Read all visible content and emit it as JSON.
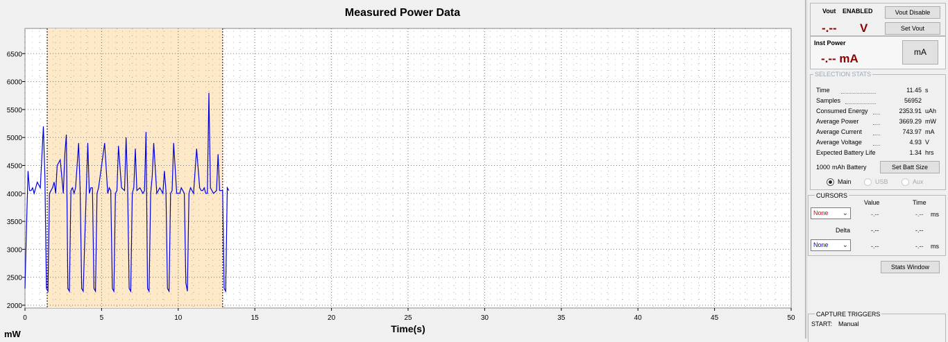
{
  "chart": {
    "title": "Measured Power Data",
    "xlabel": "Time(s)",
    "ylabel": "mW"
  },
  "chart_data": {
    "type": "line",
    "title": "Measured Power Data",
    "xlabel": "Time(s)",
    "ylabel": "mW",
    "xlim": [
      0,
      50
    ],
    "ylim": [
      1950,
      6950
    ],
    "x_ticks": [
      "0",
      "5",
      "10",
      "15",
      "20",
      "25",
      "30",
      "35",
      "40",
      "45",
      "50"
    ],
    "y_ticks": [
      "2000",
      "2500",
      "3000",
      "3500",
      "4000",
      "4500",
      "5000",
      "5500",
      "6000",
      "6500"
    ],
    "selection": [
      1.45,
      12.9
    ],
    "series": [
      {
        "color": "#0000dd",
        "x": [
          0.0,
          0.1,
          0.2,
          0.3,
          0.4,
          0.5,
          0.6,
          0.8,
          1.0,
          1.2,
          1.3,
          1.4,
          1.5,
          1.6,
          1.7,
          1.8,
          1.9,
          2.0,
          2.1,
          2.3,
          2.5,
          2.6,
          2.7,
          2.8,
          2.9,
          3.0,
          3.1,
          3.2,
          3.3,
          3.4,
          3.5,
          3.6,
          3.7,
          3.8,
          4.0,
          4.1,
          4.2,
          4.3,
          4.4,
          4.5,
          4.6,
          4.7,
          4.8,
          5.0,
          5.2,
          5.4,
          5.5,
          5.6,
          5.7,
          5.8,
          5.9,
          6.0,
          6.1,
          6.3,
          6.5,
          6.6,
          6.7,
          6.8,
          6.9,
          7.0,
          7.1,
          7.2,
          7.3,
          7.5,
          7.7,
          7.8,
          7.9,
          8.0,
          8.1,
          8.2,
          8.3,
          8.4,
          8.6,
          8.8,
          9.0,
          9.1,
          9.2,
          9.3,
          9.4,
          9.5,
          9.6,
          9.7,
          9.9,
          10.1,
          10.2,
          10.3,
          10.4,
          10.5,
          10.6,
          10.7,
          10.8,
          11.0,
          11.2,
          11.4,
          11.5,
          11.6,
          11.7,
          11.8,
          11.9,
          12.0,
          12.1,
          12.3,
          12.5,
          12.6,
          12.7,
          12.8,
          12.9,
          13.0,
          13.1,
          13.2
        ],
        "y": [
          2300,
          3400,
          4400,
          4050,
          4050,
          4100,
          4000,
          4200,
          4100,
          5200,
          4300,
          2300,
          2250,
          4000,
          4050,
          4100,
          4200,
          4000,
          4500,
          4600,
          4000,
          4700,
          5050,
          2300,
          2250,
          4050,
          4100,
          4000,
          4100,
          4500,
          4900,
          4050,
          2300,
          2250,
          4050,
          4900,
          4000,
          4100,
          4100,
          2300,
          2250,
          4000,
          4100,
          4500,
          4900,
          4000,
          4100,
          4050,
          2300,
          2250,
          4000,
          4050,
          4850,
          4100,
          4050,
          5000,
          4100,
          2300,
          2250,
          4000,
          4100,
          4800,
          4050,
          4100,
          4000,
          4050,
          5100,
          2300,
          2250,
          4000,
          4300,
          4900,
          4000,
          4100,
          4000,
          4400,
          4050,
          2300,
          2250,
          4000,
          4050,
          4900,
          4000,
          4000,
          4100,
          4050,
          4000,
          2400,
          2250,
          4000,
          4100,
          4000,
          4800,
          4100,
          4050,
          4050,
          4100,
          4000,
          4000,
          5800,
          4100,
          4000,
          4050,
          4700,
          4050,
          4050,
          4050,
          2300,
          2250,
          4100
        ],
        "tail": [
          13.3,
          4050
        ]
      }
    ]
  },
  "vout": {
    "label": "Vout",
    "state": "ENABLED",
    "value": "-.--",
    "unit": "V",
    "disable_btn": "Vout Disable",
    "set_btn": "Set Vout"
  },
  "inst_power": {
    "label": "Inst Power",
    "value": "-.-- mA",
    "unit_btn": "mA"
  },
  "selection_stats": {
    "label": "SELECTION STATS",
    "rows": [
      {
        "name": "Time",
        "value": "11.45",
        "unit": "s"
      },
      {
        "name": "Samples",
        "value": "56952",
        "unit": ""
      },
      {
        "name": "Consumed Energy",
        "value": "2353.91",
        "unit": "uAh"
      },
      {
        "name": "Average Power",
        "value": "3669.29",
        "unit": "mW"
      },
      {
        "name": "Average Current",
        "value": "743.97",
        "unit": "mA"
      },
      {
        "name": "Average Voltage",
        "value": "4.93",
        "unit": "V"
      },
      {
        "name": "Expected Battery Life",
        "value": "1.34",
        "unit": "hrs"
      }
    ],
    "battery_size": "1000",
    "battery_label": "mAh Battery",
    "set_batt_btn": "Set Batt Size",
    "radio_main": "Main",
    "radio_usb": "USB",
    "radio_aux": "Aux"
  },
  "cursors": {
    "label": "CURSORS",
    "col_value": "Value",
    "col_time": "Time",
    "sel1": "None",
    "val1": "-.--",
    "time1": "-.--",
    "unit1": "ms",
    "delta": "Delta",
    "delta_val": "-.--",
    "delta_time": "-.--",
    "sel2": "None",
    "val2": "-.--",
    "time2": "-.--",
    "unit2": "ms"
  },
  "stats_window_btn": "Stats Window",
  "capture_triggers": {
    "label": "CAPTURE TRIGGERS",
    "start_label": "START:",
    "start_value": "Manual"
  },
  "colors": {
    "selection_fill": "#fde9c8",
    "trace": "#0000dd",
    "readout": "#8b0000"
  }
}
